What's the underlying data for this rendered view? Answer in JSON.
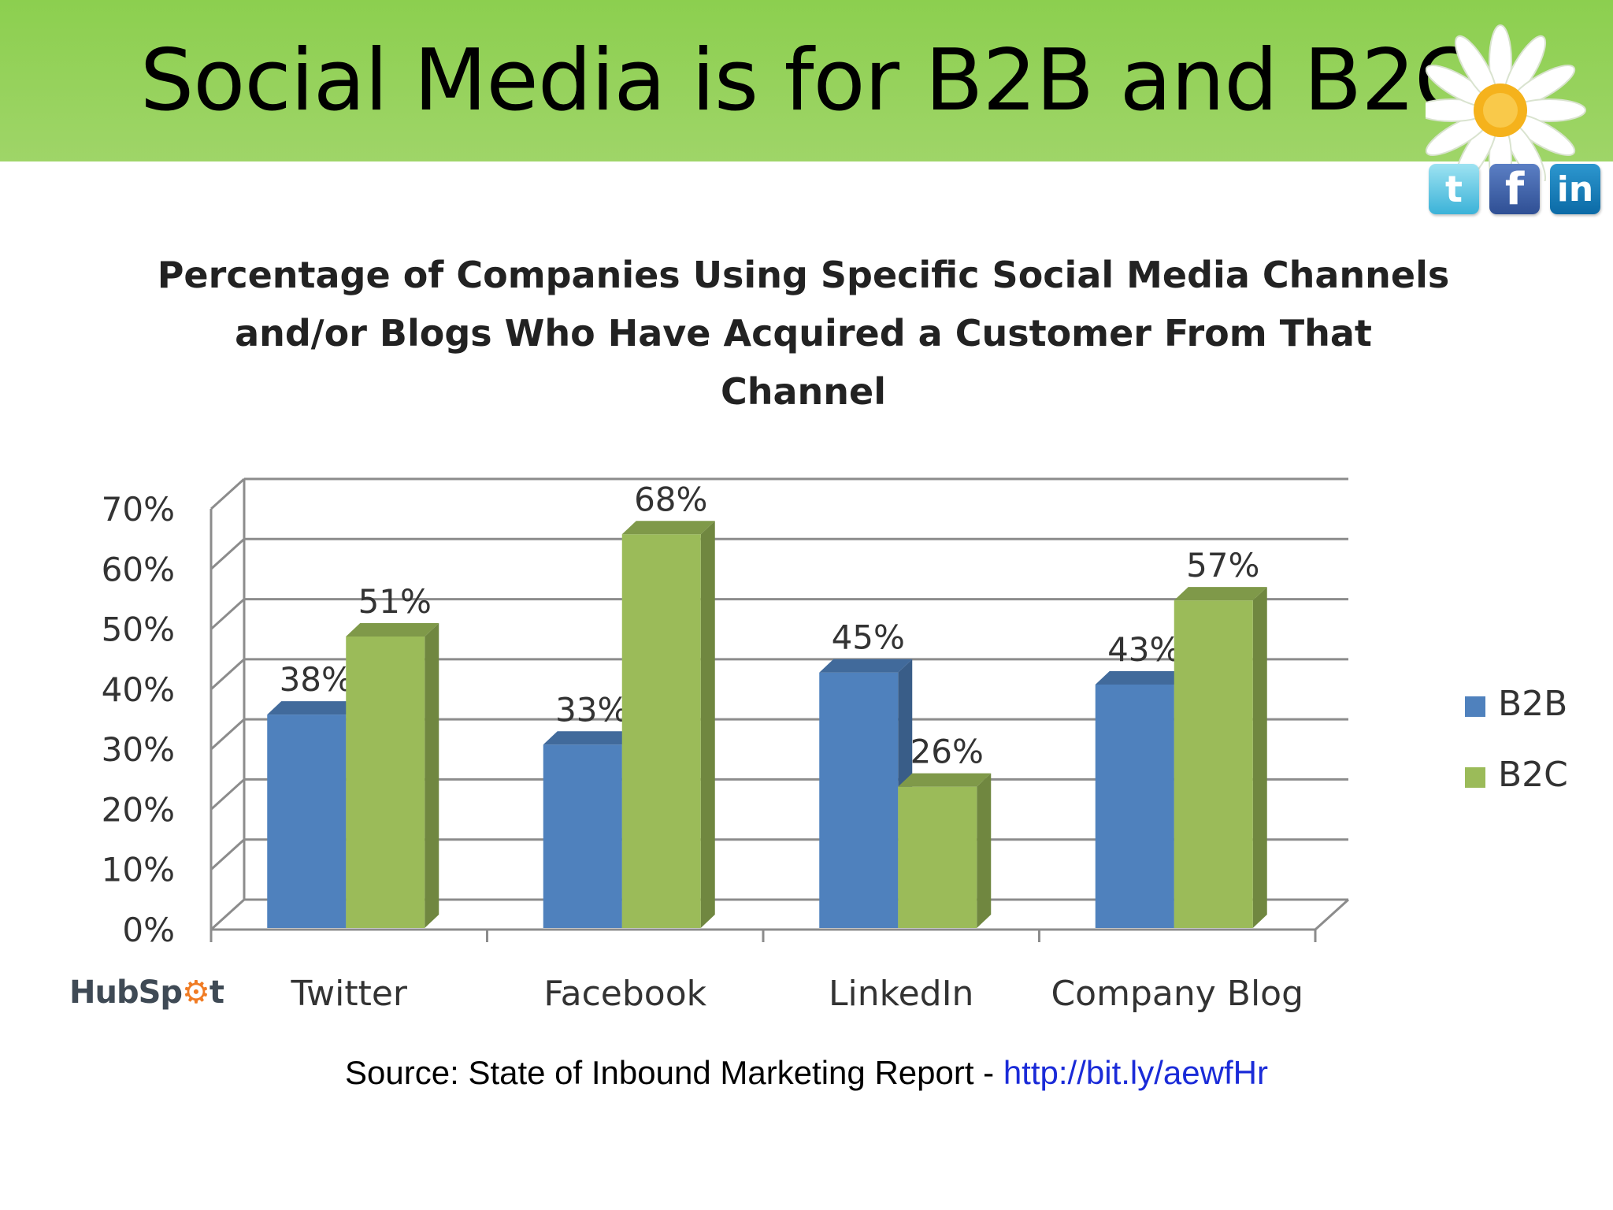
{
  "slide": {
    "title": "Social Media is for B2B and B2C",
    "icons": [
      "twitter-icon",
      "facebook-icon",
      "linkedin-icon"
    ],
    "header_color": "#8ccf4f"
  },
  "branding": {
    "logo_text": "HubSpot"
  },
  "source": {
    "prefix": "Source: State of Inbound Marketing Report - ",
    "link": "http://bit.ly/aewfHr"
  },
  "chart_data": {
    "type": "bar",
    "title": "Percentage of Companies Using Specific Social Media Channels\nand/or Blogs Who Have Acquired a Customer From That\nChannel",
    "categories": [
      "Twitter",
      "Facebook",
      "LinkedIn",
      "Company Blog"
    ],
    "series": [
      {
        "name": "B2B",
        "values": [
          38,
          33,
          45,
          43
        ],
        "color": "#4f81bd"
      },
      {
        "name": "B2C",
        "values": [
          51,
          68,
          26,
          57
        ],
        "color": "#9bbb59"
      }
    ],
    "data_labels": [
      [
        "38%",
        "33%",
        "45%",
        "43%"
      ],
      [
        "51%",
        "68%",
        "26%",
        "57%"
      ]
    ],
    "ylim": [
      0,
      70
    ],
    "yticks": [
      0,
      10,
      20,
      30,
      40,
      50,
      60,
      70
    ],
    "ytick_labels": [
      "0%",
      "10%",
      "20%",
      "30%",
      "40%",
      "50%",
      "60%",
      "70%"
    ],
    "grid": true,
    "legend": "right",
    "style": "3d-clustered-column"
  }
}
